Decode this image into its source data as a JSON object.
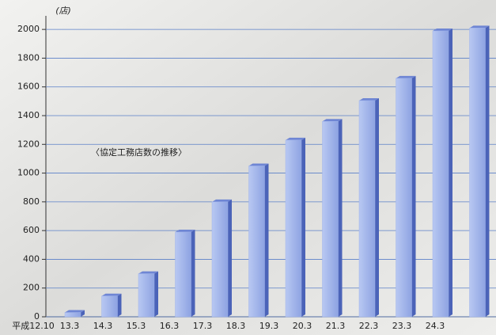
{
  "chart_data": {
    "type": "bar",
    "unit": "(店)",
    "annotation": "〈協定工務店数の推移〉",
    "categories": [
      "平成12.10",
      "13.3",
      "14.3",
      "15.3",
      "16.3",
      "17.3",
      "18.3",
      "19.3",
      "20.3",
      "21.3",
      "22.3",
      "23.3",
      "24.3"
    ],
    "values": [
      0,
      30,
      145,
      300,
      590,
      800,
      1050,
      1230,
      1360,
      1505,
      1660,
      1990,
      2010
    ],
    "color": "#9fb3ea",
    "ylim": [
      0,
      2100
    ],
    "yticks": [
      0,
      200,
      400,
      600,
      800,
      1000,
      1200,
      1400,
      1600,
      1800,
      2000
    ],
    "grid": true
  }
}
